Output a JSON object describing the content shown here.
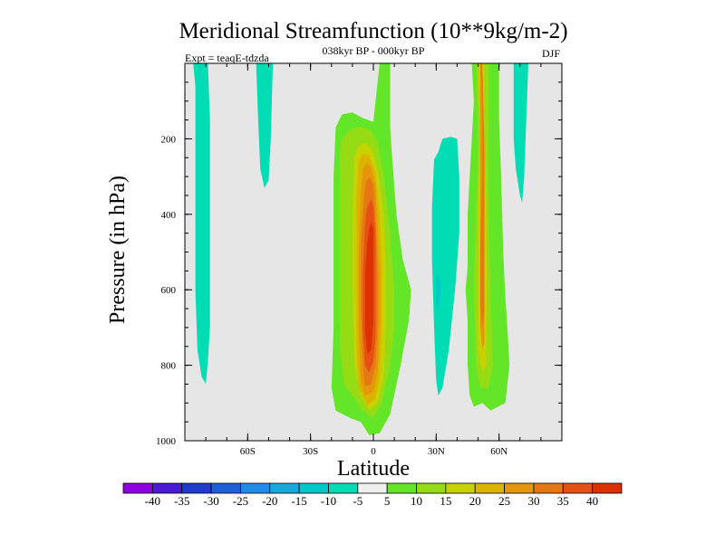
{
  "chart_data": {
    "type": "contour",
    "title": "Meridional Streamfunction (10**9kg/m-2)",
    "subtitle": "038kyr BP - 000kyr BP",
    "left_annotation": "Expt = teaqE-tdzda",
    "right_annotation": "DJF",
    "xlabel": "Latitude",
    "ylabel": "Pressure (in hPa)",
    "xlim": [
      -90,
      90
    ],
    "ylim": [
      1000,
      0
    ],
    "x_ticks": [
      {
        "value": -60,
        "label": "60S"
      },
      {
        "value": -30,
        "label": "30S"
      },
      {
        "value": 0,
        "label": "0"
      },
      {
        "value": 30,
        "label": "30N"
      },
      {
        "value": 60,
        "label": "60N"
      }
    ],
    "y_ticks": [
      {
        "value": 200,
        "label": "200"
      },
      {
        "value": 400,
        "label": "400"
      },
      {
        "value": 600,
        "label": "600"
      },
      {
        "value": 800,
        "label": "800"
      },
      {
        "value": 1000,
        "label": "1000"
      }
    ],
    "background_color": "#e6e6e6",
    "colorbar": {
      "levels": [
        "-40",
        "-35",
        "-30",
        "-25",
        "-20",
        "-15",
        "-10",
        "-5",
        "5",
        "10",
        "15",
        "20",
        "25",
        "30",
        "35",
        "40"
      ],
      "colors": [
        "#8c00e0",
        "#4a1ad8",
        "#1e3ccc",
        "#1e5fd8",
        "#1e8ce8",
        "#14aadc",
        "#00c8c8",
        "#00dcb4",
        "#f0f0f0",
        "#64e628",
        "#96dc14",
        "#c8d200",
        "#dcb400",
        "#e6960a",
        "#e67814",
        "#e65014",
        "#dc3200"
      ]
    },
    "cells": [
      {
        "name": "cell-60s-upper-negative",
        "band": 7,
        "outline": [
          [
            -86,
            0
          ],
          [
            -85,
            60
          ],
          [
            -85,
            300
          ],
          [
            -85,
            600
          ],
          [
            -84,
            760
          ],
          [
            -82,
            830
          ],
          [
            -80,
            850
          ],
          [
            -79,
            790
          ],
          [
            -78,
            700
          ],
          [
            -78,
            400
          ],
          [
            -78,
            150
          ],
          [
            -79,
            0
          ]
        ]
      },
      {
        "name": "cell-50s-upper-negative",
        "band": 7,
        "outline": [
          [
            -56,
            0
          ],
          [
            -55,
            150
          ],
          [
            -54,
            280
          ],
          [
            -52,
            330
          ],
          [
            -50,
            310
          ],
          [
            -49,
            200
          ],
          [
            -48,
            0
          ]
        ]
      },
      {
        "name": "cell-30n-negative",
        "band": 7,
        "outline": [
          [
            29,
            255
          ],
          [
            31,
            235
          ],
          [
            33,
            200
          ],
          [
            37,
            195
          ],
          [
            40,
            200
          ],
          [
            41,
            300
          ],
          [
            41,
            450
          ],
          [
            39,
            600
          ],
          [
            36,
            760
          ],
          [
            33,
            860
          ],
          [
            31,
            880
          ],
          [
            30,
            840
          ],
          [
            29,
            700
          ],
          [
            28,
            520
          ],
          [
            28,
            380
          ]
        ]
      },
      {
        "name": "cell-30n-negative-core",
        "band": 6,
        "outline": [
          [
            30,
            570
          ],
          [
            31,
            560
          ],
          [
            32,
            580
          ],
          [
            32,
            610
          ],
          [
            31,
            650
          ],
          [
            30,
            640
          ]
        ]
      },
      {
        "name": "cell-70n-upper-negative",
        "band": 7,
        "outline": [
          [
            67,
            0
          ],
          [
            67,
            100
          ],
          [
            67,
            200
          ],
          [
            68,
            280
          ],
          [
            70,
            350
          ],
          [
            71,
            370
          ],
          [
            72,
            300
          ],
          [
            73,
            150
          ],
          [
            74,
            0
          ]
        ]
      },
      {
        "name": "cell-hadley-equator",
        "band": 9,
        "outline": [
          [
            -19,
            300
          ],
          [
            -18,
            170
          ],
          [
            -15,
            135
          ],
          [
            -10,
            130
          ],
          [
            -5,
            145
          ],
          [
            0,
            155
          ],
          [
            3,
            0
          ],
          [
            8,
            0
          ],
          [
            8,
            170
          ],
          [
            9,
            250
          ],
          [
            11,
            400
          ],
          [
            14,
            520
          ],
          [
            18,
            600
          ],
          [
            17,
            680
          ],
          [
            13,
            800
          ],
          [
            8,
            930
          ],
          [
            3,
            980
          ],
          [
            -2,
            985
          ],
          [
            -6,
            950
          ],
          [
            -11,
            940
          ],
          [
            -18,
            920
          ],
          [
            -20,
            860
          ],
          [
            -19,
            700
          ],
          [
            -19,
            520
          ],
          [
            -19,
            400
          ]
        ]
      },
      {
        "name": "cell-hadley-equator",
        "band": 10,
        "outline": [
          [
            -16,
            250
          ],
          [
            -15,
            200
          ],
          [
            -12,
            180
          ],
          [
            -8,
            170
          ],
          [
            -4,
            170
          ],
          [
            -1,
            180
          ],
          [
            2,
            210
          ],
          [
            5,
            300
          ],
          [
            8,
            450
          ],
          [
            10,
            600
          ],
          [
            10,
            700
          ],
          [
            8,
            800
          ],
          [
            4,
            900
          ],
          [
            0,
            940
          ],
          [
            -5,
            920
          ],
          [
            -10,
            880
          ],
          [
            -14,
            850
          ],
          [
            -16,
            750
          ],
          [
            -16,
            500
          ]
        ]
      },
      {
        "name": "cell-hadley-equator",
        "band": 11,
        "outline": [
          [
            -9,
            250
          ],
          [
            -7,
            220
          ],
          [
            -4,
            210
          ],
          [
            -1,
            225
          ],
          [
            2,
            280
          ],
          [
            5,
            400
          ],
          [
            6,
            550
          ],
          [
            6,
            700
          ],
          [
            5,
            830
          ],
          [
            2,
            900
          ],
          [
            -2,
            920
          ],
          [
            -6,
            880
          ],
          [
            -9,
            800
          ],
          [
            -10,
            600
          ],
          [
            -10,
            400
          ]
        ]
      },
      {
        "name": "cell-hadley-equator",
        "band": 12,
        "outline": [
          [
            -7,
            260
          ],
          [
            -5,
            240
          ],
          [
            -2,
            245
          ],
          [
            1,
            290
          ],
          [
            3,
            400
          ],
          [
            4,
            550
          ],
          [
            4,
            700
          ],
          [
            3,
            830
          ],
          [
            1,
            890
          ],
          [
            -3,
            905
          ],
          [
            -7,
            860
          ],
          [
            -8,
            750
          ],
          [
            -8,
            500
          ],
          [
            -8,
            350
          ]
        ]
      },
      {
        "name": "cell-hadley-equator",
        "band": 13,
        "outline": [
          [
            -5,
            280
          ],
          [
            -3,
            265
          ],
          [
            -1,
            275
          ],
          [
            1,
            320
          ],
          [
            2,
            430
          ],
          [
            3,
            560
          ],
          [
            3,
            700
          ],
          [
            2,
            820
          ],
          [
            0,
            870
          ],
          [
            -4,
            880
          ],
          [
            -6,
            840
          ],
          [
            -7,
            700
          ],
          [
            -7,
            500
          ],
          [
            -6,
            350
          ]
        ]
      },
      {
        "name": "cell-hadley-equator",
        "band": 14,
        "outline": [
          [
            -4,
            320
          ],
          [
            -2,
            300
          ],
          [
            0,
            320
          ],
          [
            1,
            400
          ],
          [
            2,
            550
          ],
          [
            2,
            700
          ],
          [
            1,
            800
          ],
          [
            -1,
            850
          ],
          [
            -4,
            855
          ],
          [
            -5,
            800
          ],
          [
            -6,
            650
          ],
          [
            -6,
            480
          ]
        ]
      },
      {
        "name": "cell-hadley-equator",
        "band": 15,
        "outline": [
          [
            -3,
            380
          ],
          [
            -1,
            360
          ],
          [
            0,
            380
          ],
          [
            1,
            460
          ],
          [
            1,
            600
          ],
          [
            1,
            720
          ],
          [
            0,
            790
          ],
          [
            -2,
            820
          ],
          [
            -4,
            800
          ],
          [
            -5,
            700
          ],
          [
            -5,
            550
          ],
          [
            -4,
            430
          ]
        ]
      },
      {
        "name": "cell-hadley-equator",
        "band": 16,
        "outline": [
          [
            -2,
            440
          ],
          [
            -1,
            420
          ],
          [
            0,
            440
          ],
          [
            0,
            560
          ],
          [
            0,
            680
          ],
          [
            -1,
            760
          ],
          [
            -3,
            770
          ],
          [
            -4,
            700
          ],
          [
            -4,
            560
          ],
          [
            -3,
            480
          ]
        ]
      },
      {
        "name": "cell-60n-positive",
        "band": 9,
        "outline": [
          [
            47,
            0
          ],
          [
            48,
            100
          ],
          [
            47,
            200
          ],
          [
            46,
            300
          ],
          [
            45,
            400
          ],
          [
            45,
            540
          ],
          [
            44,
            600
          ],
          [
            45,
            680
          ],
          [
            45,
            800
          ],
          [
            46,
            880
          ],
          [
            48,
            910
          ],
          [
            52,
            900
          ],
          [
            56,
            920
          ],
          [
            63,
            900
          ],
          [
            65,
            800
          ],
          [
            64,
            700
          ],
          [
            63,
            620
          ],
          [
            62,
            500
          ],
          [
            61,
            300
          ],
          [
            60,
            150
          ],
          [
            60,
            0
          ]
        ]
      },
      {
        "name": "cell-60n-positive",
        "band": 10,
        "outline": [
          [
            49,
            0
          ],
          [
            50,
            200
          ],
          [
            49,
            400
          ],
          [
            48,
            600
          ],
          [
            49,
            800
          ],
          [
            51,
            860
          ],
          [
            55,
            860
          ],
          [
            57,
            800
          ],
          [
            56,
            600
          ],
          [
            55,
            400
          ],
          [
            55,
            200
          ],
          [
            55,
            0
          ]
        ]
      },
      {
        "name": "cell-60n-positive",
        "band": 11,
        "outline": [
          [
            50,
            0
          ],
          [
            51,
            200
          ],
          [
            50,
            400
          ],
          [
            50,
            600
          ],
          [
            50,
            760
          ],
          [
            52,
            820
          ],
          [
            54,
            800
          ],
          [
            54,
            600
          ],
          [
            54,
            400
          ],
          [
            53,
            200
          ],
          [
            53,
            0
          ]
        ]
      },
      {
        "name": "cell-60n-positive",
        "band": 13,
        "outline": [
          [
            51,
            0
          ],
          [
            51,
            200
          ],
          [
            51,
            400
          ],
          [
            51,
            600
          ],
          [
            51,
            700
          ],
          [
            52,
            760
          ],
          [
            53,
            740
          ],
          [
            53,
            560
          ],
          [
            53,
            380
          ],
          [
            53,
            200
          ],
          [
            52,
            0
          ]
        ]
      },
      {
        "name": "cell-60n-positive",
        "band": 14,
        "outline": [
          [
            51,
            0
          ],
          [
            52,
            100
          ],
          [
            52,
            300
          ],
          [
            51,
            500
          ],
          [
            51,
            640
          ],
          [
            52,
            700
          ],
          [
            53,
            650
          ],
          [
            53,
            450
          ],
          [
            53,
            250
          ],
          [
            52,
            0
          ]
        ]
      }
    ]
  }
}
